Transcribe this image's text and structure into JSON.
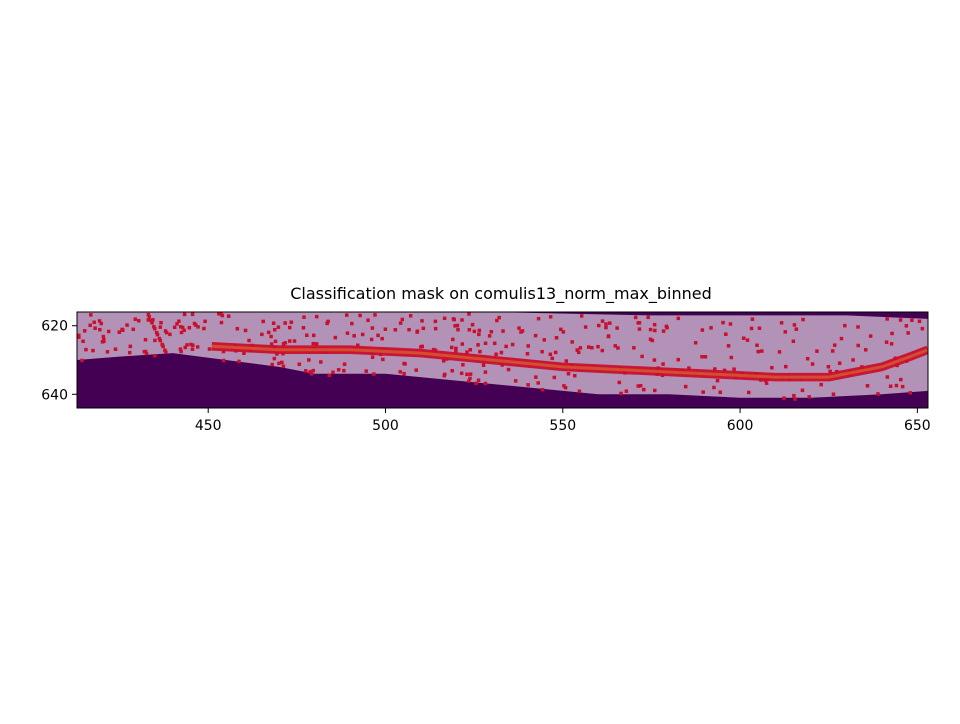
{
  "chart_data": {
    "type": "heatmap",
    "title": "Classification mask on comulis13_norm_max_binned",
    "xlabel": "",
    "ylabel": "",
    "xlim": [
      413,
      653
    ],
    "ylim": [
      644,
      616
    ],
    "y_inverted": true,
    "xticks": [
      450,
      500,
      550,
      600,
      650
    ],
    "yticks": [
      620,
      640
    ],
    "grid": false,
    "layers": [
      {
        "name": "mask-background",
        "color": "#440154",
        "description_region": "outside mask"
      },
      {
        "name": "mask-region",
        "color": "#b392b8",
        "upper_boundary": [
          [
            413,
            616
          ],
          [
            530,
            616
          ],
          [
            575,
            617
          ],
          [
            610,
            617
          ],
          [
            630,
            617
          ],
          [
            653,
            618
          ]
        ],
        "lower_boundary": [
          [
            413,
            630
          ],
          [
            425,
            629
          ],
          [
            440,
            628
          ],
          [
            455,
            630
          ],
          [
            470,
            632
          ],
          [
            480,
            634
          ],
          [
            500,
            634
          ],
          [
            520,
            636
          ],
          [
            540,
            638
          ],
          [
            560,
            640
          ],
          [
            580,
            640
          ],
          [
            600,
            641
          ],
          [
            620,
            641
          ],
          [
            640,
            640
          ],
          [
            653,
            639
          ]
        ]
      },
      {
        "name": "classified-band",
        "color": "#c8102e",
        "centerline": [
          [
            451,
            626
          ],
          [
            470,
            627
          ],
          [
            490,
            627
          ],
          [
            510,
            628
          ],
          [
            530,
            630
          ],
          [
            550,
            632
          ],
          [
            570,
            633
          ],
          [
            590,
            634
          ],
          [
            610,
            635
          ],
          [
            625,
            635
          ],
          [
            640,
            632
          ],
          [
            648,
            629
          ],
          [
            653,
            627
          ]
        ],
        "width": 2.5
      }
    ],
    "colors": {
      "background": "#440154",
      "mask": "#b392b8",
      "classified": "#c8102e",
      "highlight": "#e07a2a",
      "light": "#cfe8e4"
    }
  }
}
